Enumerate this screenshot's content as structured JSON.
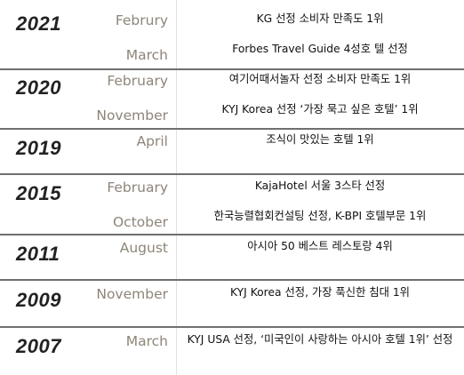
{
  "timeline": [
    {
      "year": "2021",
      "entries": [
        {
          "month": "Februry",
          "text": "KG 선정 소비자 만족도 1위"
        },
        {
          "month": "March",
          "text": "Forbes Travel Guide 4성호 텔 선정"
        }
      ]
    },
    {
      "year": "2020",
      "entries": [
        {
          "month": "February",
          "text": "여기어때서놀자 선정 소비자 만족도 1위"
        },
        {
          "month": "November",
          "text": "KYJ Korea 선정 ‘가장 묵고 싶은 호텔’ 1위"
        }
      ]
    },
    {
      "year": "2019",
      "entries": [
        {
          "month": "April",
          "text": "조식이 맛있는 호텔 1위"
        }
      ]
    },
    {
      "year": "2015",
      "entries": [
        {
          "month": "February",
          "text": "KajaHotel 서울 3스타 선정"
        },
        {
          "month": "October",
          "text": "한국능렬협회컨설팅 선정,  K-BPI 호텔부문 1위"
        }
      ]
    },
    {
      "year": "2011",
      "entries": [
        {
          "month": "August",
          "text": "아시아 50 베스트 레스토랑 4위"
        }
      ]
    },
    {
      "year": "2009",
      "entries": [
        {
          "month": "November",
          "text": "KYJ Korea 선정, 가장 푹신한 침대 1위"
        }
      ]
    },
    {
      "year": "2007",
      "entries": [
        {
          "month": "March",
          "text": "KYJ USA 선정, ‘미국인이 사랑하는 아시아 호텔 1위’ 선정"
        }
      ]
    }
  ]
}
